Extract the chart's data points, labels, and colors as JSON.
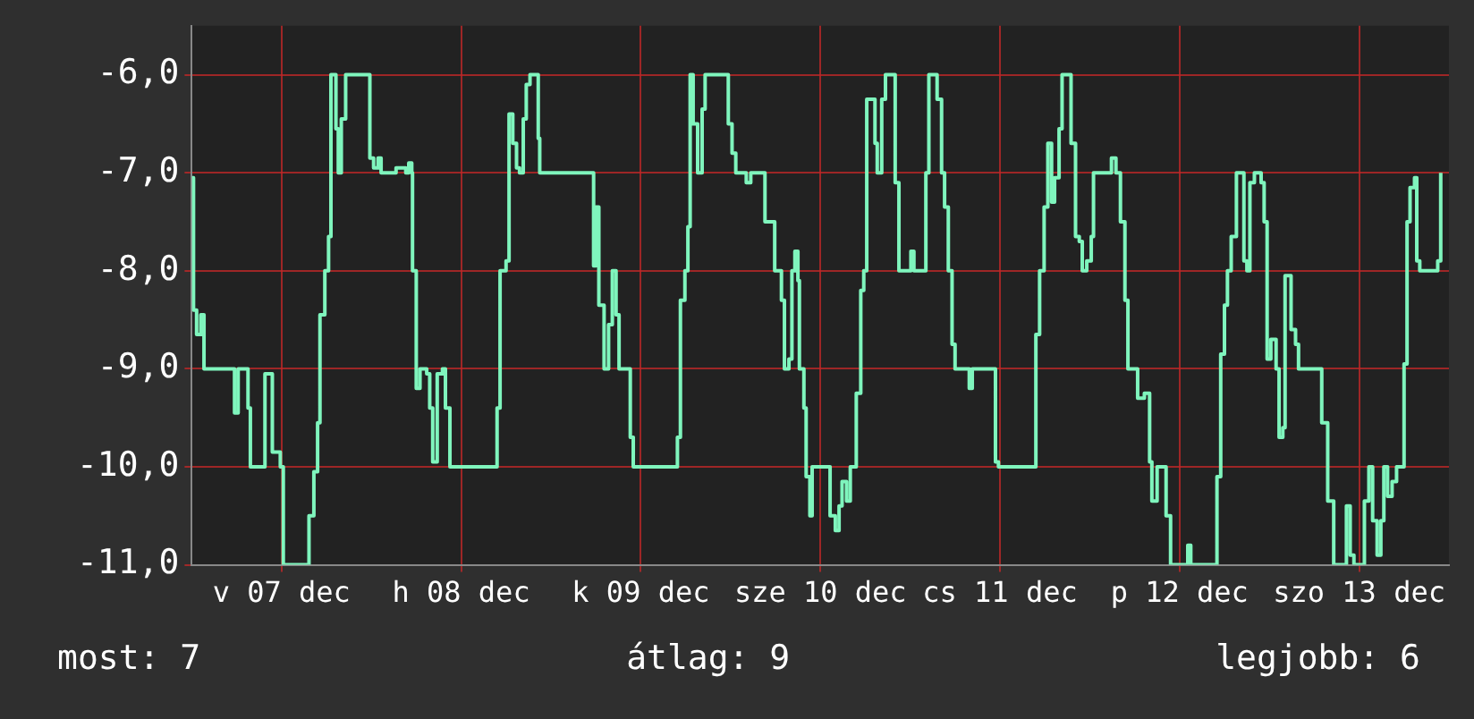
{
  "chart_data": {
    "type": "step",
    "x": [
      "--12-07T00:00",
      "--12-07T00:14",
      "--12-07T00:39",
      "--12-07T01:13",
      "--12-07T01:38",
      "--12-07T05:33",
      "--12-07T05:43",
      "--12-07T06:12",
      "--12-07T07:11",
      "--12-07T07:31",
      "--12-07T07:50",
      "--12-07T09:38",
      "--12-07T09:47",
      "--12-07T10:26",
      "--12-07T10:46",
      "--12-07T11:50",
      "--12-07T12:14",
      "--12-07T15:30",
      "--12-07T15:40",
      "--12-07T16:19",
      "--12-07T16:49",
      "--12-07T17:08",
      "--12-07T17:47",
      "--12-07T18:17",
      "--12-07T18:36",
      "--12-07T19:00",
      "--12-07T19:16",
      "--12-07T19:35",
      "--12-07T19:59",
      "--12-07T20:34",
      "--12-07T23:30",
      "--12-07T23:48",
      "--12-08T00:18",
      "--12-08T00:54",
      "--12-08T01:18",
      "--12-08T02:54",
      "--12-08T03:18",
      "--12-08T04:36",
      "--12-08T05:00",
      "--12-08T05:24",
      "--12-08T05:30",
      "--12-08T06:00",
      "--12-08T06:30",
      "--12-08T07:24",
      "--12-08T07:48",
      "--12-08T08:12",
      "--12-08T08:48",
      "--12-08T09:30",
      "--12-08T09:54",
      "--12-08T10:30",
      "--12-08T16:24",
      "--12-08T16:48",
      "--12-08T17:12",
      "--12-08T18:00",
      "--12-08T18:24",
      "--12-08T18:54",
      "--12-08T19:24",
      "--12-08T19:48",
      "--12-08T20:18",
      "--12-08T20:42",
      "--12-08T21:12",
      "--12-08T21:42",
      "--12-08T22:18",
      "--12-08T22:30",
      "--12-09T05:24",
      "--12-09T05:42",
      "--12-09T06:00",
      "--12-09T06:24",
      "--12-09T07:06",
      "--12-09T07:42",
      "--12-09T08:12",
      "--12-09T08:42",
      "--12-09T09:06",
      "--12-09T10:06",
      "--12-09T10:36",
      "--12-09T11:00",
      "--12-09T16:30",
      "--12-09T16:54",
      "--12-09T17:18",
      "--12-09T17:54",
      "--12-09T18:18",
      "--12-09T18:36",
      "--12-09T19:00",
      "--12-09T19:36",
      "--12-09T20:12",
      "--12-09T20:36",
      "--12-09T23:12",
      "--12-09T23:42",
      "--12-10T00:12",
      "--12-10T00:42",
      "--12-10T01:54",
      "--12-10T02:06",
      "--12-10T02:42",
      "--12-10T03:54",
      "--12-10T04:36",
      "--12-10T05:24",
      "--12-10T05:54",
      "--12-10T06:24",
      "--12-10T06:48",
      "--12-10T07:12",
      "--12-10T07:48",
      "--12-10T08:12",
      "--12-10T08:36",
      "--12-10T09:00",
      "--12-10T09:12",
      "--12-10T09:48",
      "--12-10T10:06",
      "--12-10T10:36",
      "--12-10T10:54",
      "--12-10T12:54",
      "--12-10T13:18",
      "--12-10T14:00",
      "--12-10T14:30",
      "--12-10T14:54",
      "--12-10T15:30",
      "--12-10T16:00",
      "--12-10T16:48",
      "--12-10T17:24",
      "--12-10T17:48",
      "--12-10T18:12",
      "--12-10T18:48",
      "--12-10T19:18",
      "--12-10T19:36",
      "--12-10T20:12",
      "--12-10T20:42",
      "--12-10T21:42",
      "--12-10T22:00",
      "--12-10T22:30",
      "--12-10T23:42",
      "--12-11T00:06",
      "--12-11T00:30",
      "--12-11T01:42",
      "--12-11T02:06",
      "--12-11T02:30",
      "--12-11T03:12",
      "--12-11T03:36",
      "--12-11T04:12",
      "--12-11T04:36",
      "--12-11T05:06",
      "--12-11T05:36",
      "--12-11T06:00",
      "--12-11T07:30",
      "--12-11T07:54",
      "--12-11T08:18",
      "--12-11T10:54",
      "--12-11T11:24",
      "--12-11T11:48",
      "--12-11T16:12",
      "--12-11T16:48",
      "--12-11T17:18",
      "--12-11T17:54",
      "--12-11T18:24",
      "--12-11T18:54",
      "--12-11T19:18",
      "--12-11T19:54",
      "--12-11T20:18",
      "--12-11T21:00",
      "--12-11T21:30",
      "--12-11T22:06",
      "--12-11T22:36",
      "--12-11T23:00",
      "--12-11T23:36",
      "--12-12T00:12",
      "--12-12T00:30",
      "--12-12T02:24",
      "--12-12T02:54",
      "--12-12T03:30",
      "--12-12T04:06",
      "--12-12T04:42",
      "--12-12T05:06",
      "--12-12T06:00",
      "--12-12T06:24",
      "--12-12T07:18",
      "--12-12T08:00",
      "--12-12T08:18",
      "--12-12T09:00",
      "--12-12T09:48",
      "--12-12T10:12",
      "--12-12T10:48",
      "--12-12T12:36",
      "--12-12T13:06",
      "--12-12T13:30",
      "--12-12T16:30",
      "--12-12T17:00",
      "--12-12T17:30",
      "--12-12T18:00",
      "--12-12T18:24",
      "--12-12T18:54",
      "--12-12T19:36",
      "--12-12T20:12",
      "--12-12T20:36",
      "--12-12T21:00",
      "--12-12T21:24",
      "--12-12T22:00",
      "--12-12T22:54",
      "--12-12T23:18",
      "--12-12T23:42",
      "--12-13T00:12",
      "--12-13T00:54",
      "--12-13T01:18",
      "--12-13T01:48",
      "--12-13T02:06",
      "--12-13T02:36",
      "--12-13T02:54",
      "--12-13T03:30",
      "--12-13T03:54",
      "--12-13T06:30",
      "--12-13T07:00",
      "--12-13T07:48",
      "--12-13T08:36",
      "--12-13T09:30",
      "--12-13T10:18",
      "--12-13T10:48",
      "--12-13T11:18",
      "--12-13T12:24",
      "--12-13T12:42",
      "--12-13T13:18",
      "--12-13T13:48",
      "--12-13T14:24",
      "--12-13T14:54",
      "--12-13T15:18",
      "--12-13T15:48",
      "--12-13T16:24",
      "--12-13T17:00",
      "--12-13T17:36",
      "--12-13T18:00",
      "--12-13T18:24",
      "--12-13T18:48",
      "--12-13T19:24",
      "--12-13T19:42",
      "--12-13T20:06",
      "--12-13T22:06",
      "--12-13T22:30",
      "--12-13T22:54"
    ],
    "values": [
      -7.05,
      -8.4,
      -8.65,
      -8.45,
      -9,
      -9,
      -9.45,
      -9,
      -9,
      -9.4,
      -10,
      -10,
      -9.05,
      -9.05,
      -9.85,
      -10,
      -11,
      -11,
      -10.5,
      -10.05,
      -9.55,
      -8.45,
      -8,
      -7.65,
      -6,
      -6,
      -6.55,
      -7,
      -6.45,
      -6,
      -6,
      -6.85,
      -6.95,
      -6.85,
      -7,
      -7,
      -6.95,
      -7,
      -6.9,
      -7,
      -8,
      -9.2,
      -9,
      -9.05,
      -9.4,
      -9.95,
      -9.05,
      -9,
      -9.4,
      -10,
      -10,
      -9.4,
      -8,
      -7.9,
      -6.4,
      -6.7,
      -6.95,
      -7,
      -6.45,
      -6.1,
      -6,
      -6,
      -6.65,
      -7,
      -7,
      -7.95,
      -7.35,
      -8.35,
      -9,
      -8.55,
      -8,
      -8.45,
      -9,
      -9,
      -9.7,
      -10,
      -10,
      -9.7,
      -8.3,
      -8,
      -7.55,
      -6,
      -6.5,
      -7,
      -6.35,
      -6,
      -6,
      -6.5,
      -6.8,
      -7,
      -7,
      -7.1,
      -7,
      -7,
      -7.5,
      -7.5,
      -8,
      -8,
      -8.3,
      -9,
      -8.9,
      -8,
      -7.8,
      -8.1,
      -9,
      -9.4,
      -10.1,
      -10.5,
      -10,
      -10,
      -10.5,
      -10.65,
      -10.4,
      -10.15,
      -10.35,
      -10,
      -9.25,
      -8.2,
      -8,
      -6.25,
      -6.25,
      -6.7,
      -7,
      -6.25,
      -6,
      -6,
      -7.1,
      -8,
      -8,
      -7.8,
      -8,
      -8,
      -7,
      -6,
      -6,
      -6.25,
      -7,
      -7.35,
      -8,
      -8.75,
      -9,
      -9,
      -9.2,
      -9,
      -9,
      -9.95,
      -10,
      -10,
      -8.65,
      -8,
      -7.35,
      -6.7,
      -7.3,
      -7.05,
      -6.55,
      -6,
      -6,
      -6.7,
      -7.65,
      -7.7,
      -8,
      -7.9,
      -7.65,
      -7,
      -7,
      -6.85,
      -7,
      -7.5,
      -8.3,
      -9,
      -9,
      -9.3,
      -9.25,
      -9.95,
      -10.35,
      -10,
      -10,
      -10.5,
      -11,
      -11,
      -10.8,
      -11,
      -11,
      -10.1,
      -8.85,
      -8.35,
      -8,
      -7.65,
      -7,
      -7,
      -7.9,
      -8,
      -7.1,
      -7,
      -7.1,
      -7.5,
      -8.9,
      -8.7,
      -9,
      -9.7,
      -9.6,
      -8.05,
      -8.05,
      -8.6,
      -8.75,
      -9,
      -9,
      -9.55,
      -10.35,
      -11,
      -11,
      -10.4,
      -10.9,
      -11,
      -11,
      -10.35,
      -10,
      -10.55,
      -10.9,
      -10.55,
      -10,
      -10.3,
      -10.15,
      -10,
      -10,
      -8.95,
      -7.5,
      -7.15,
      -7.05,
      -7.9,
      -8,
      -8,
      -7.9,
      -7
    ],
    "color": "#7ff5bd",
    "xlim": [
      "--12-07T00:00",
      "--12-14T00:00"
    ],
    "xticks": [
      {
        "value": "--12-07T12:00",
        "label": "v 07 dec"
      },
      {
        "value": "--12-08T12:00",
        "label": "h 08 dec"
      },
      {
        "value": "--12-09T12:00",
        "label": "k 09 dec"
      },
      {
        "value": "--12-10T12:00",
        "label": "sze 10 dec"
      },
      {
        "value": "--12-11T12:00",
        "label": "cs 11 dec"
      },
      {
        "value": "--12-12T12:00",
        "label": "p 12 dec"
      },
      {
        "value": "--12-13T12:00",
        "label": "szo 13 dec"
      }
    ],
    "ylim": [
      -11,
      -5.5
    ],
    "yticks": [
      {
        "value": -11,
        "label": "-11,0"
      },
      {
        "value": -10,
        "label": "-10,0"
      },
      {
        "value": -9,
        "label": "-9,0"
      },
      {
        "value": -8,
        "label": "-8,0"
      },
      {
        "value": -7,
        "label": "-7,0"
      },
      {
        "value": -6,
        "label": "-6,0"
      }
    ],
    "grid": true,
    "annotations": [
      "most: 7",
      "átlag: 9",
      "legjobb: 6"
    ]
  }
}
